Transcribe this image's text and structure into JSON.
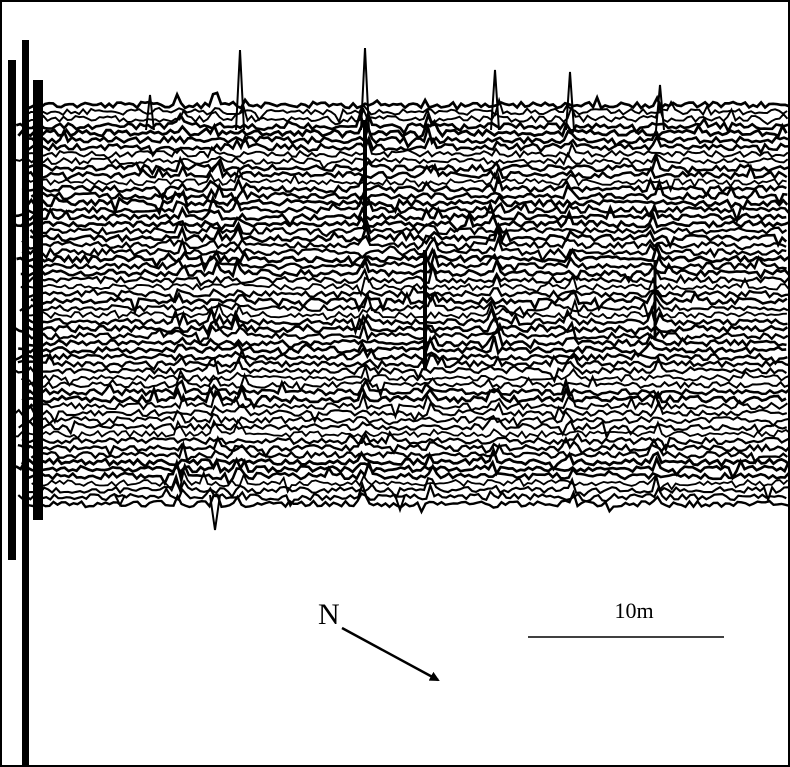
{
  "north_label": "N",
  "scale_label": "10m"
}
